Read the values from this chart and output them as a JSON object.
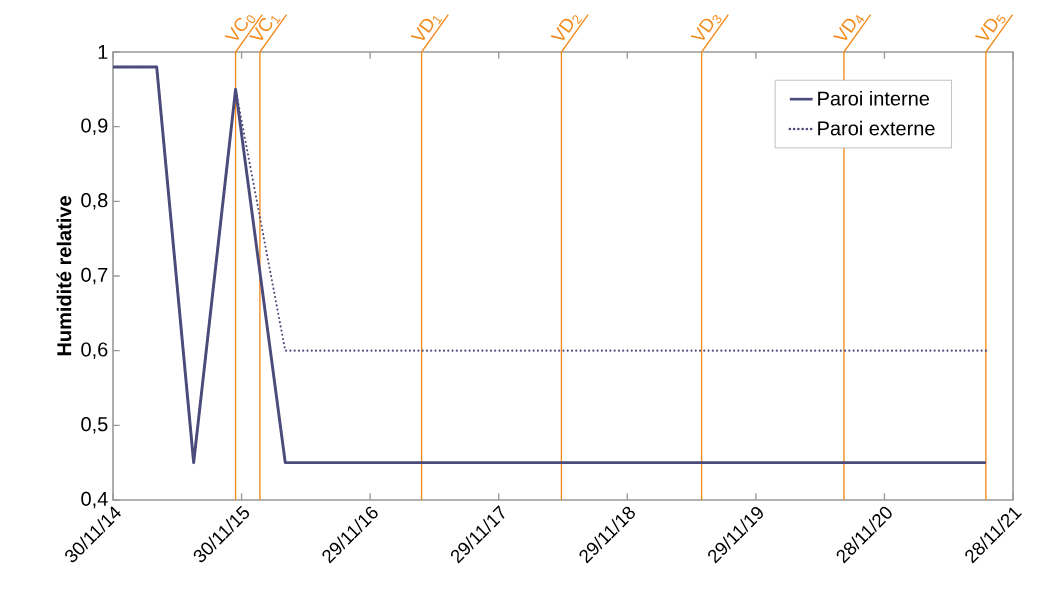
{
  "chart_data": {
    "type": "line",
    "ylabel": "**Humidité relative**",
    "xlim": [
      "2014-11-30",
      "2021-11-28"
    ],
    "xticks": [
      {
        "value": "2014-11-30",
        "label": "30/11/14"
      },
      {
        "value": "2015-11-30",
        "label": "30/11/15"
      },
      {
        "value": "2016-11-29",
        "label": "29/11/16"
      },
      {
        "value": "2017-11-29",
        "label": "29/11/17"
      },
      {
        "value": "2018-11-29",
        "label": "29/11/18"
      },
      {
        "value": "2019-11-29",
        "label": "29/11/19"
      },
      {
        "value": "2020-11-28",
        "label": "28/11/20"
      },
      {
        "value": "2021-11-28",
        "label": "28/11/21"
      }
    ],
    "ylim": [
      0.4,
      1
    ],
    "yticks": [
      {
        "value": 0.4,
        "label": "0,4"
      },
      {
        "value": 0.5,
        "label": "0,5"
      },
      {
        "value": 0.6,
        "label": "0,6"
      },
      {
        "value": 0.7,
        "label": "0,7"
      },
      {
        "value": 0.8,
        "label": "0,8"
      },
      {
        "value": 0.9,
        "label": "0,9"
      },
      {
        "value": 1,
        "label": "1"
      }
    ],
    "series": [
      {
        "name": "Paroi interne",
        "color": "#4b4b7c",
        "line_style": "solid",
        "x": [
          "2014-11-30",
          "2015-04-03",
          "2015-07-17",
          "2015-11-13",
          "2016-04-02",
          "2021-09-12"
        ],
        "values": [
          0.98,
          0.98,
          0.45,
          0.95,
          0.45,
          0.45
        ]
      },
      {
        "name": "Paroi externe",
        "color": "#4b4b7c",
        "line_style": "dotted",
        "x": [
          "2014-11-30",
          "2015-04-03",
          "2015-07-17",
          "2015-11-13",
          "2016-04-02",
          "2021-09-12"
        ],
        "values": [
          0.98,
          0.98,
          0.45,
          0.95,
          0.6,
          0.6
        ]
      }
    ],
    "ref_lines": [
      {
        "axis": "x",
        "value": "2015-11-13",
        "label": "VC$_{0}$",
        "color": "#f28a1a"
      },
      {
        "axis": "x",
        "value": "2016-01-21",
        "label": "VC$_{1}$",
        "color": "#f28a1a"
      },
      {
        "axis": "x",
        "value": "2017-04-24",
        "label": "VD$_{1}$",
        "color": "#f28a1a"
      },
      {
        "axis": "x",
        "value": "2018-05-26",
        "label": "VD$_{2}$",
        "color": "#f28a1a"
      },
      {
        "axis": "x",
        "value": "2019-06-28",
        "label": "VD$_{3}$",
        "color": "#f28a1a"
      },
      {
        "axis": "x",
        "value": "2020-08-05",
        "label": "VD$_{4}$",
        "color": "#f28a1a"
      },
      {
        "axis": "x",
        "value": "2021-09-12",
        "label": "VD$_{5}$",
        "color": "#f28a1a"
      }
    ],
    "grid": false,
    "legend": "top right"
  }
}
